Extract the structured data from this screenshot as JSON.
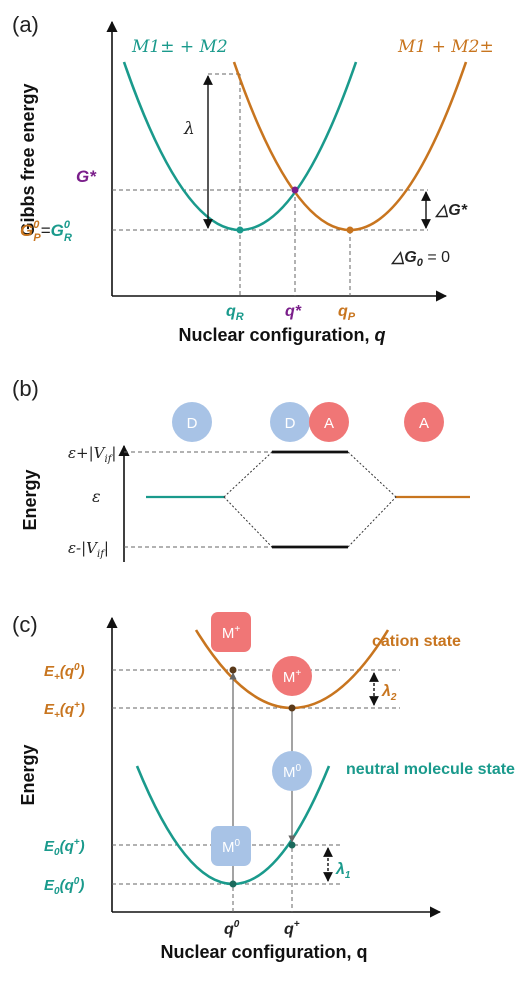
{
  "colors": {
    "teal": "#1a9a8c",
    "orange": "#c8751f",
    "purple": "#7a1e8a",
    "donor_blue": "#a8c3e6",
    "acceptor_red": "#f07676",
    "cation_box": "#f07676",
    "neutral_box": "#a8c3e6"
  },
  "panel_a": {
    "label": "(a)",
    "curve_left_label": "M1± + M2",
    "curve_right_label": "M1 + M2±",
    "y_axis_title": "Gibbs free energy",
    "x_axis_title_main": "Nuclear configuration, ",
    "x_axis_title_var": "q",
    "lambda_label": "λ",
    "g_star": "G*",
    "g0_p": "G",
    "g0_p_sup": "0",
    "g0_p_sub": "P",
    "equals": "=",
    "g0_r": "G",
    "g0_r_sup": "0",
    "g0_r_sub": "R",
    "delta_g_star": "△G*",
    "delta_g0": "△G",
    "delta_g0_sub": "0",
    "delta_g0_value": " = 0",
    "q_r": "q",
    "q_r_sub": "R",
    "q_star": "q*",
    "q_p": "q",
    "q_p_sub": "P"
  },
  "panel_b": {
    "label": "(b)",
    "y_axis_title": "Energy",
    "donor": "D",
    "acceptor": "A",
    "eps_plus": "ε+|V",
    "eps_plus_sub": "if",
    "eps_plus_tail": "|",
    "eps": "ε",
    "eps_minus": "ε-|V",
    "eps_minus_sub": "if",
    "eps_minus_tail": "|"
  },
  "panel_c": {
    "label": "(c)",
    "y_axis_title": "Energy",
    "x_axis_title": "Nuclear configuration, q",
    "cation_state": "cation state",
    "neutral_state": "neutral molecule state",
    "e_plus_q0": "E",
    "e_plus_q0_sub": "+",
    "e_plus_q0_arg": "(q",
    "e_plus_q0_arg_sup": "0",
    "e_plus_q0_close": ")",
    "e_plus_qplus": "E",
    "e_plus_qplus_sub": "+",
    "e_plus_qplus_arg": "(q",
    "e_plus_qplus_arg_sup": "+",
    "e_plus_qplus_close": ")",
    "e0_qplus": "E",
    "e0_qplus_sub": "0",
    "e0_qplus_arg": "(q",
    "e0_qplus_arg_sup": "+",
    "e0_qplus_close": ")",
    "e0_q0": "E",
    "e0_q0_sub": "0",
    "e0_q0_arg": "(q",
    "e0_q0_arg_sup": "0",
    "e0_q0_close": ")",
    "lambda2": "λ",
    "lambda2_sub": "2",
    "lambda1": "λ",
    "lambda1_sub": "1",
    "m_plus": "M",
    "m_plus_sup": "+",
    "m_zero": "M",
    "m_zero_sup": "0",
    "q0": "q",
    "q0_sup": "0",
    "qplus": "q",
    "qplus_sup": "+"
  }
}
